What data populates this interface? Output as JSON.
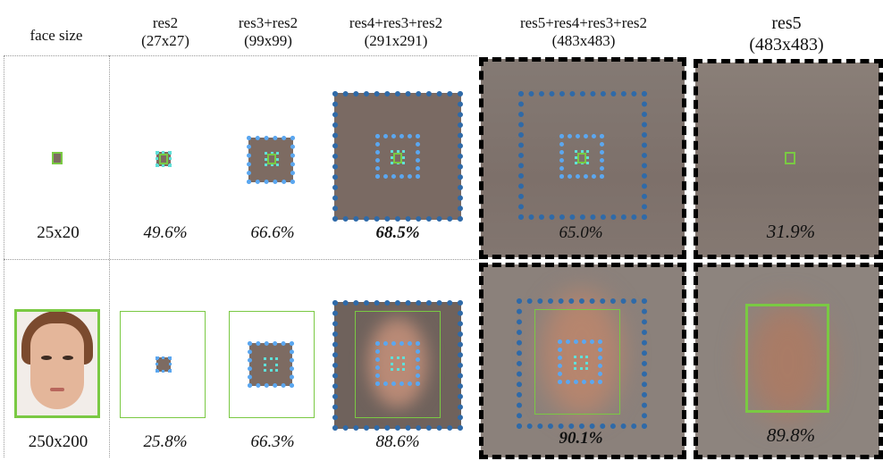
{
  "headers": {
    "face_size": "face size",
    "col1": {
      "name": "res2",
      "size": "(27x27)"
    },
    "col2": {
      "name": "res3+res2",
      "size": "(99x99)"
    },
    "col3": {
      "name": "res4+res3+res2",
      "size": "(291x291)"
    },
    "col4": {
      "name": "res5+res4+res3+res2",
      "size": "(483x483)"
    },
    "col5": {
      "name": "res5",
      "size": "(483x483)"
    }
  },
  "rows": [
    {
      "face_size": "25x20",
      "values": [
        "49.6%",
        "66.6%",
        "68.5%",
        "65.0%",
        "31.9%"
      ]
    },
    {
      "face_size": "250x200",
      "values": [
        "25.8%",
        "66.3%",
        "88.6%",
        "90.1%",
        "89.8%"
      ]
    }
  ],
  "colors": {
    "dark_blue": "#2f6aa8",
    "light_blue": "#5ba7f0",
    "green": "#7ac943",
    "cyan": "#60e0d8"
  }
}
